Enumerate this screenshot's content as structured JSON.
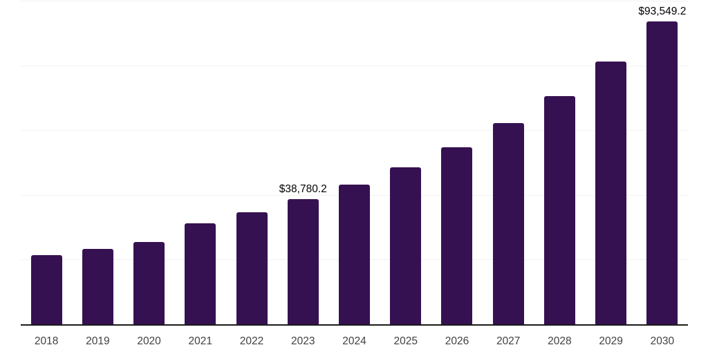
{
  "chart_data": {
    "type": "bar",
    "title": "",
    "xlabel": "",
    "ylabel": "",
    "categories": [
      "2018",
      "2019",
      "2020",
      "2021",
      "2022",
      "2023",
      "2024",
      "2025",
      "2026",
      "2027",
      "2028",
      "2029",
      "2030"
    ],
    "values": [
      21450,
      23280,
      25410,
      31250,
      34720,
      38780.2,
      43090,
      48410,
      54800,
      62130,
      70570,
      81150,
      93549.2
    ],
    "data_labels": [
      {
        "category": "2023",
        "text": "$38,780.2"
      },
      {
        "category": "2030",
        "text": "$93,549.2"
      }
    ],
    "ylim": [
      0,
      100000
    ],
    "gridline_step": 20000,
    "grid": "horizontal-only",
    "legend": "none",
    "y_axis_tick_labels": "none",
    "colors": {
      "bar": "#361152",
      "axis_line": "#1a1a1a",
      "gridline": "#f2f2f2",
      "value_label": "#000000",
      "x_tick_label": "#404040",
      "background": "#ffffff"
    }
  }
}
